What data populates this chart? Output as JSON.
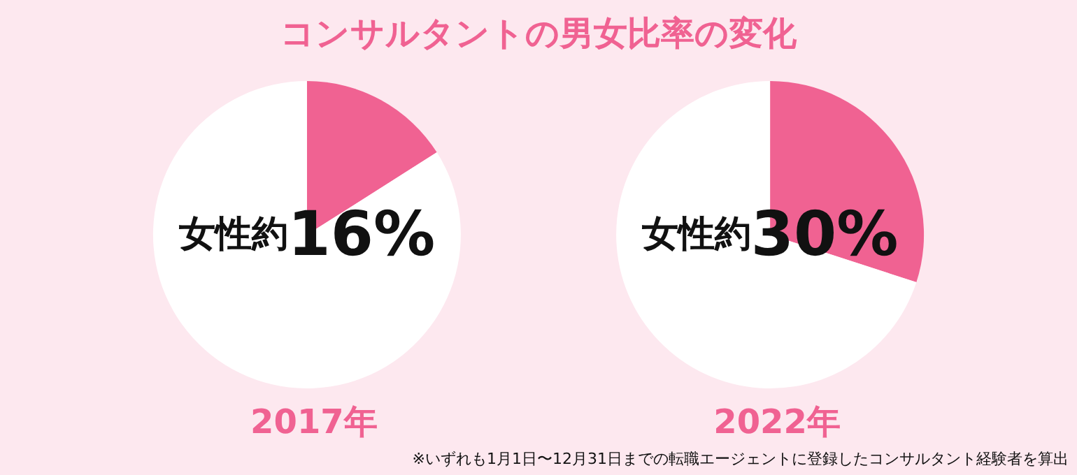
{
  "chart_data": [
    {
      "type": "pie",
      "title": "コンサルタントの男女比率の変化",
      "categories": [
        null,
        null
      ],
      "values": [
        16,
        84
      ],
      "colors": [
        "#f06292",
        "#ffffff"
      ],
      "value_labels": [
        "女性約16%",
        null
      ],
      "xlabel": "2017年"
    },
    {
      "type": "pie",
      "categories": [
        null,
        null
      ],
      "values": [
        30,
        70
      ],
      "colors": [
        "#f06292",
        "#ffffff"
      ],
      "value_labels": [
        "女性約30%",
        null
      ],
      "xlabel": "2022年",
      "annotations": [
        "※いずれも1月1日〜12月31日までの転職エージェントに登録したコンサルタント経験者を算出"
      ]
    }
  ]
}
